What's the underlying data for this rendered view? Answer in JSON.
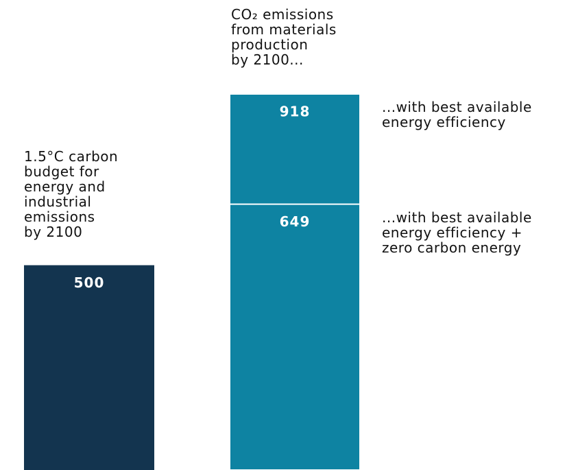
{
  "chart_data": {
    "type": "bar",
    "annotation": "CO₂ emissions\nfrom materials\nproduction\nby 2100...",
    "bars": [
      {
        "label": "1.5°C carbon\nbudget for\nenergy and\nindustrial\nemissions\nby 2100",
        "value": 500,
        "color": "#13344f"
      },
      {
        "label": "...with best available\nenergy efficiency",
        "value": 918,
        "color": "#0e83a2"
      },
      {
        "label": "...with best available\nenergy efficiency +\nzero carbon energy",
        "value": 649,
        "color": "#0e83a2"
      }
    ]
  }
}
